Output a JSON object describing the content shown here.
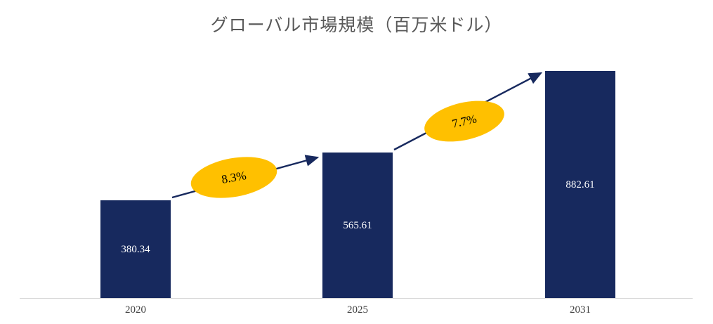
{
  "chart_data": {
    "type": "bar",
    "title": "グローバル市場規模（百万米ドル）",
    "categories": [
      "2020",
      "2025",
      "2031"
    ],
    "values": [
      380.34,
      565.61,
      882.61
    ],
    "value_labels": [
      "380.34",
      "565.61",
      "882.61"
    ],
    "growth_annotations": [
      {
        "label": "8.3%",
        "from": "2020",
        "to": "2025"
      },
      {
        "label": "7.7%",
        "from": "2025",
        "to": "2031"
      }
    ],
    "ylabel": "",
    "xlabel": "",
    "ylim": [
      0,
      930
    ],
    "grid": false,
    "legend_position": "none",
    "bar_color": "#17295e",
    "annotation_fill_color": "#ffc000",
    "arrow_color": "#17295e",
    "title_color": "#595959",
    "value_label_color": "#ffffff"
  }
}
